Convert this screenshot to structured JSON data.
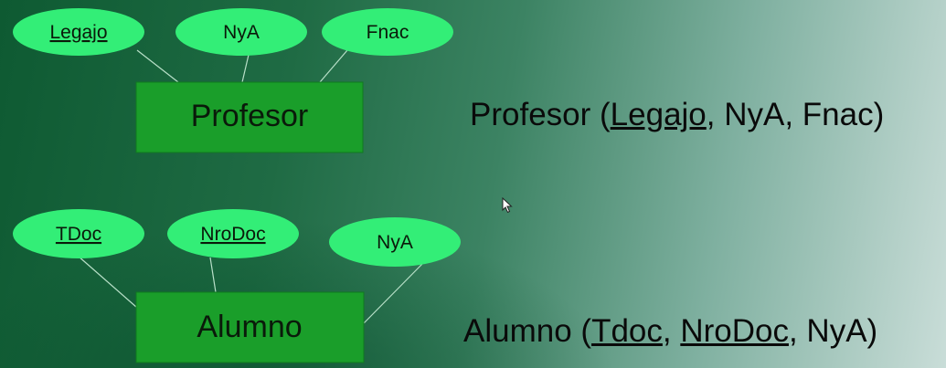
{
  "colors": {
    "entity_fill": "#1a9e2a",
    "attribute_fill": "#33ee77",
    "connector": "#b8e0c8"
  },
  "profesor": {
    "entity_label": "Profesor",
    "attributes": [
      {
        "label": "Legajo",
        "key": true
      },
      {
        "label": "NyA",
        "key": false
      },
      {
        "label": "Fnac",
        "key": false
      }
    ]
  },
  "alumno": {
    "entity_label": "Alumno",
    "attributes": [
      {
        "label": "TDoc",
        "key": true
      },
      {
        "label": "NroDoc",
        "key": true
      },
      {
        "label": "NyA",
        "key": false
      }
    ]
  },
  "schema_profesor": {
    "name": "Profesor",
    "open": " (",
    "attr1": "Legajo",
    "sep1": ", NyA, Fnac)"
  },
  "schema_alumno": {
    "name": "Alumno",
    "open": " (",
    "attr1": "Tdoc",
    "sep1": ", ",
    "attr2": "NroDoc",
    "sep2": ", NyA)"
  },
  "cursor_icon": "mouse-pointer-icon"
}
